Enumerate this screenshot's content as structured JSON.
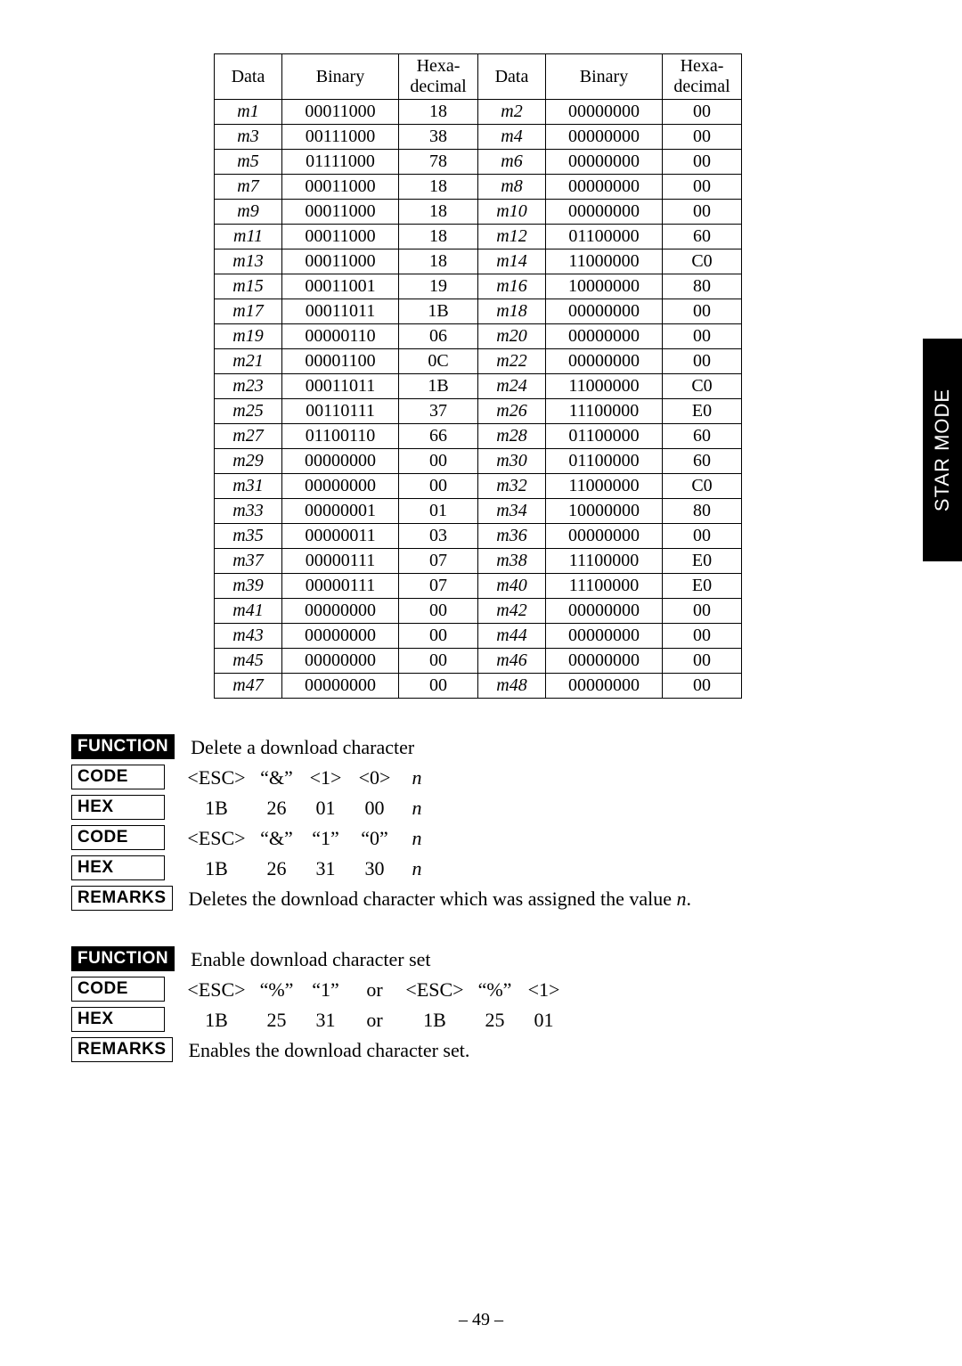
{
  "side_tab": "STAR MODE",
  "page_number": "– 49 –",
  "table": {
    "headers": [
      "Data",
      "Binary",
      "Hexa-\ndecimal",
      "Data",
      "Binary",
      "Hexa-\ndecimal"
    ],
    "rows": [
      [
        "m1",
        "00011000",
        "18",
        "m2",
        "00000000",
        "00"
      ],
      [
        "m3",
        "00111000",
        "38",
        "m4",
        "00000000",
        "00"
      ],
      [
        "m5",
        "01111000",
        "78",
        "m6",
        "00000000",
        "00"
      ],
      [
        "m7",
        "00011000",
        "18",
        "m8",
        "00000000",
        "00"
      ],
      [
        "m9",
        "00011000",
        "18",
        "m10",
        "00000000",
        "00"
      ],
      [
        "m11",
        "00011000",
        "18",
        "m12",
        "01100000",
        "60"
      ],
      [
        "m13",
        "00011000",
        "18",
        "m14",
        "11000000",
        "C0"
      ],
      [
        "m15",
        "00011001",
        "19",
        "m16",
        "10000000",
        "80"
      ],
      [
        "m17",
        "00011011",
        "1B",
        "m18",
        "00000000",
        "00"
      ],
      [
        "m19",
        "00000110",
        "06",
        "m20",
        "00000000",
        "00"
      ],
      [
        "m21",
        "00001100",
        "0C",
        "m22",
        "00000000",
        "00"
      ],
      [
        "m23",
        "00011011",
        "1B",
        "m24",
        "11000000",
        "C0"
      ],
      [
        "m25",
        "00110111",
        "37",
        "m26",
        "11100000",
        "E0"
      ],
      [
        "m27",
        "01100110",
        "66",
        "m28",
        "01100000",
        "60"
      ],
      [
        "m29",
        "00000000",
        "00",
        "m30",
        "01100000",
        "60"
      ],
      [
        "m31",
        "00000000",
        "00",
        "m32",
        "11000000",
        "C0"
      ],
      [
        "m33",
        "00000001",
        "01",
        "m34",
        "10000000",
        "80"
      ],
      [
        "m35",
        "00000011",
        "03",
        "m36",
        "00000000",
        "00"
      ],
      [
        "m37",
        "00000111",
        "07",
        "m38",
        "11100000",
        "E0"
      ],
      [
        "m39",
        "00000111",
        "07",
        "m40",
        "11100000",
        "E0"
      ],
      [
        "m41",
        "00000000",
        "00",
        "m42",
        "00000000",
        "00"
      ],
      [
        "m43",
        "00000000",
        "00",
        "m44",
        "00000000",
        "00"
      ],
      [
        "m45",
        "00000000",
        "00",
        "m46",
        "00000000",
        "00"
      ],
      [
        "m47",
        "00000000",
        "00",
        "m48",
        "00000000",
        "00"
      ]
    ]
  },
  "block1": {
    "function": "Delete a download character",
    "code1": [
      "<ESC>",
      "“&”",
      "<1>",
      "<0>",
      "n"
    ],
    "hex1": [
      "1B",
      "26",
      "01",
      "00",
      "n"
    ],
    "code2": [
      "<ESC>",
      "“&”",
      "“1”",
      "“0”",
      "n"
    ],
    "hex2": [
      "1B",
      "26",
      "31",
      "30",
      "n"
    ],
    "remarks_pre": "Deletes the download character which was assigned the value ",
    "remarks_var": "n",
    "remarks_post": "."
  },
  "block2": {
    "function": "Enable download character set",
    "code": [
      "<ESC>",
      "“%”",
      "“1”",
      "or",
      "<ESC>",
      "“%”",
      "<1>"
    ],
    "hex": [
      "1B",
      "25",
      "31",
      "or",
      "1B",
      "25",
      "01"
    ],
    "remarks": "Enables the download character set."
  },
  "labels": {
    "function": "FUNCTION",
    "code": "CODE",
    "hex": "HEX",
    "remarks": "REMARKS"
  }
}
